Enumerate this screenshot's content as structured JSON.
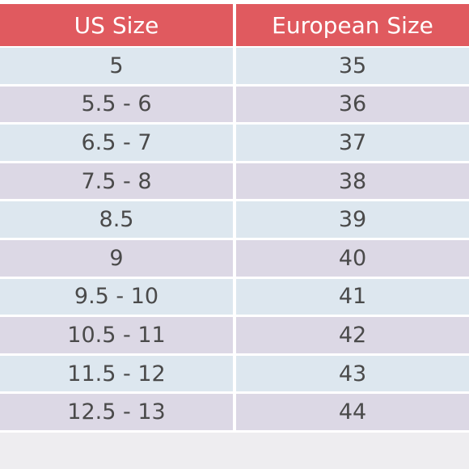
{
  "table": {
    "header": [
      "US Size",
      "European Size"
    ],
    "rows": [
      [
        "5",
        "35"
      ],
      [
        "5.5 - 6",
        "36"
      ],
      [
        "6.5 - 7",
        "37"
      ],
      [
        "7.5 - 8",
        "38"
      ],
      [
        "8.5",
        "39"
      ],
      [
        "9",
        "40"
      ],
      [
        "9.5 - 10",
        "41"
      ],
      [
        "10.5 - 11",
        "42"
      ],
      [
        "11.5 - 12",
        "43"
      ],
      [
        "12.5 - 13",
        "44"
      ]
    ]
  }
}
